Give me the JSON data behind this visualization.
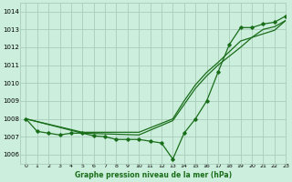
{
  "title": "Graphe pression niveau de la mer (hPa)",
  "background_color": "#cceedd",
  "grid_color": "#aaccbb",
  "line_color": "#1a6e1a",
  "ylim": [
    1005.5,
    1014.5
  ],
  "xlim": [
    -0.5,
    23
  ],
  "yticks": [
    1006,
    1007,
    1008,
    1009,
    1010,
    1011,
    1012,
    1013,
    1014
  ],
  "xticks": [
    0,
    1,
    2,
    3,
    4,
    5,
    6,
    7,
    8,
    9,
    10,
    11,
    12,
    13,
    14,
    15,
    16,
    17,
    18,
    19,
    20,
    21,
    22,
    23
  ],
  "series_marked_x": [
    0,
    1,
    2,
    3,
    4,
    5,
    6,
    7,
    8,
    9,
    10,
    11,
    12,
    13,
    14,
    15,
    16,
    17,
    18,
    19,
    20,
    21,
    22,
    23
  ],
  "series_marked_y": [
    1008.0,
    1007.3,
    1007.2,
    1007.1,
    1007.2,
    1007.2,
    1007.05,
    1007.0,
    1006.85,
    1006.85,
    1006.85,
    1006.75,
    1006.65,
    1005.75,
    1007.2,
    1008.0,
    1009.0,
    1010.6,
    1012.15,
    1013.1,
    1013.1,
    1013.3,
    1013.4,
    1013.75
  ],
  "series_line1_x": [
    0,
    5,
    10,
    13,
    14,
    15,
    16,
    17,
    18,
    19,
    20,
    21,
    22,
    23
  ],
  "series_line1_y": [
    1008.0,
    1007.25,
    1007.25,
    1008.0,
    1009.0,
    1009.9,
    1010.6,
    1011.15,
    1011.75,
    1012.35,
    1012.55,
    1012.75,
    1012.95,
    1013.5
  ],
  "series_line2_x": [
    0,
    5,
    10,
    13,
    14,
    15,
    16,
    17,
    18,
    19,
    20,
    21,
    22,
    23
  ],
  "series_line2_y": [
    1008.0,
    1007.2,
    1007.1,
    1007.9,
    1008.8,
    1009.7,
    1010.4,
    1011.0,
    1011.5,
    1012.0,
    1012.55,
    1013.0,
    1013.15,
    1013.5
  ]
}
